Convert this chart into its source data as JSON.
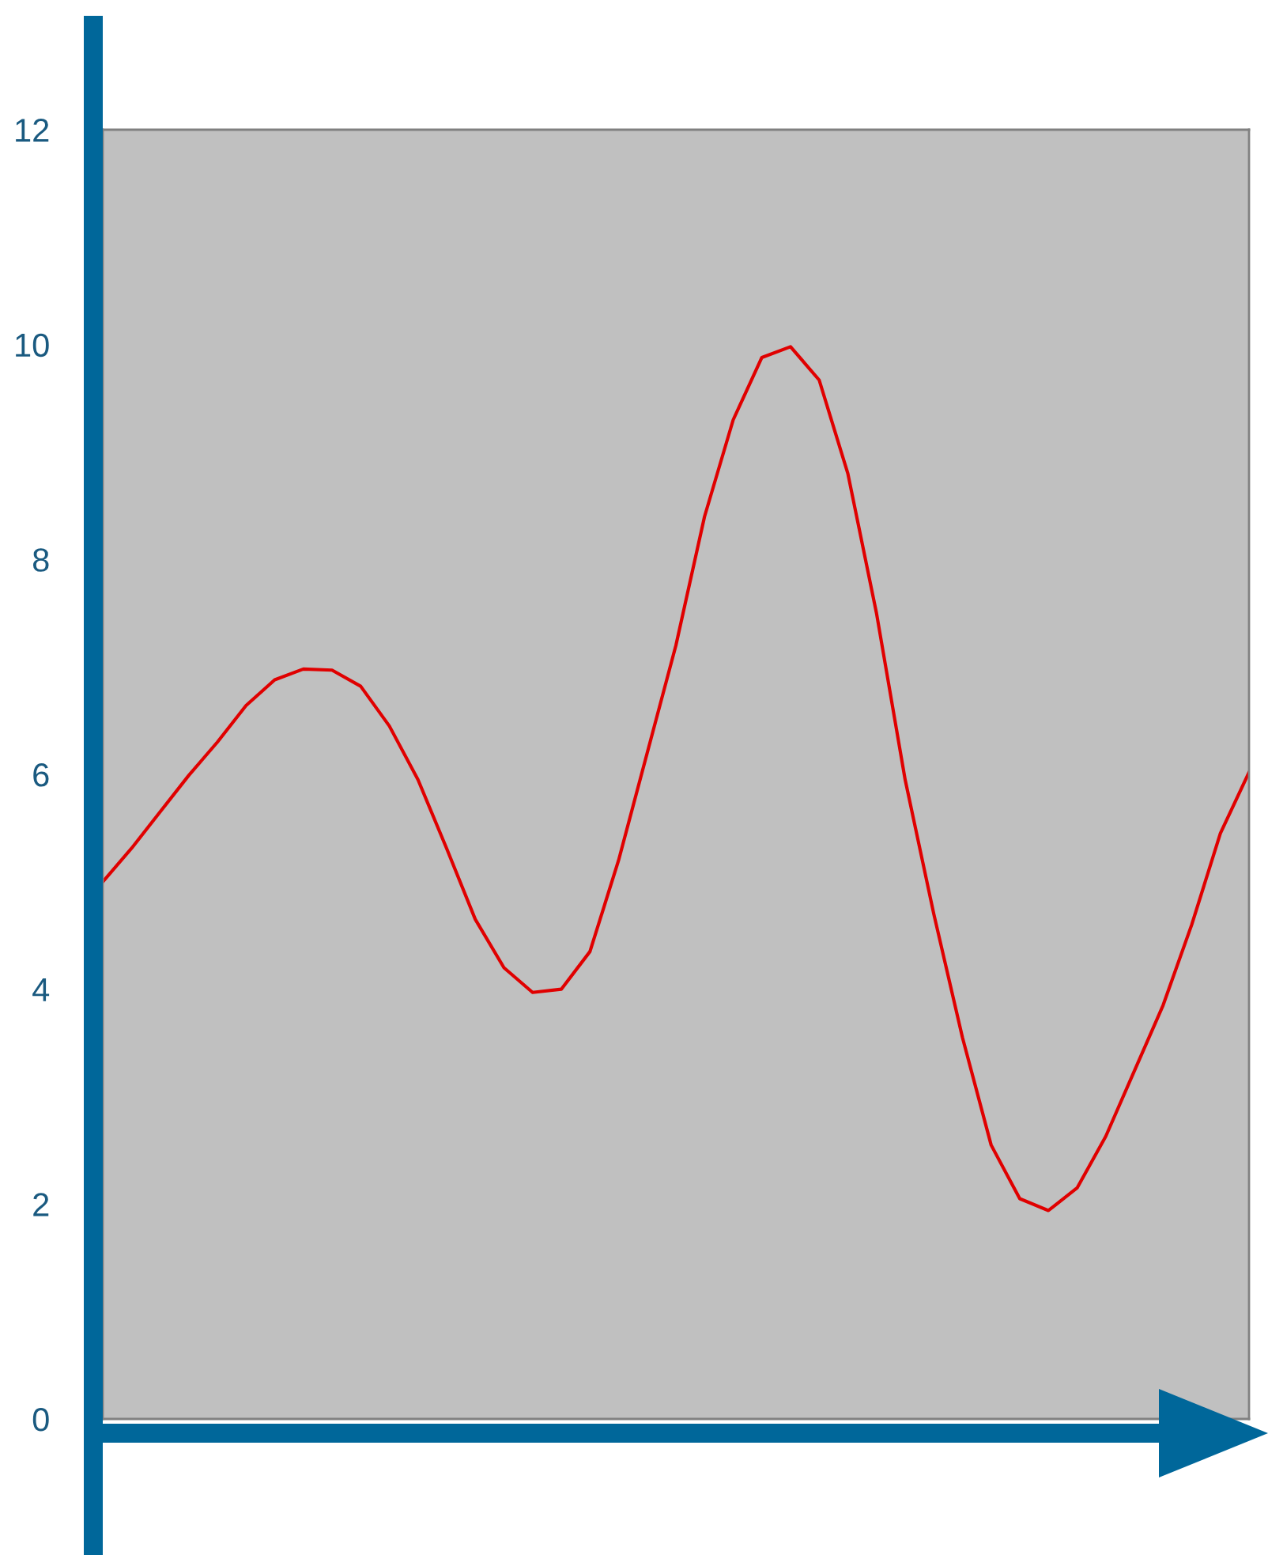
{
  "chart_data": {
    "type": "line",
    "categories": [
      null,
      null,
      null,
      null,
      null,
      null,
      null,
      null,
      null,
      null,
      null,
      null,
      null,
      null,
      null,
      null,
      null,
      null,
      null,
      null,
      null,
      null,
      null,
      null,
      null,
      null,
      null,
      null,
      null,
      null,
      null,
      null,
      null,
      null,
      null,
      null,
      null,
      null,
      null,
      null,
      null
    ],
    "series": [
      {
        "color": "#e00000",
        "values": [
          5.0,
          5.31,
          5.65,
          5.99,
          6.3,
          6.64,
          6.88,
          6.98,
          6.97,
          6.82,
          6.45,
          5.95,
          5.31,
          4.65,
          4.2,
          3.97,
          4.0,
          4.35,
          5.2,
          6.2,
          7.2,
          8.4,
          9.3,
          9.88,
          9.98,
          9.67,
          8.8,
          7.5,
          5.95,
          4.7,
          3.55,
          2.55,
          2.05,
          1.94,
          2.15,
          2.63,
          3.24,
          3.85,
          4.6,
          5.45,
          6.02
        ]
      }
    ],
    "ylim": [
      0,
      12
    ],
    "yticks": [
      0,
      2,
      4,
      6,
      8,
      10,
      12
    ],
    "tick_labels": "y"
  }
}
